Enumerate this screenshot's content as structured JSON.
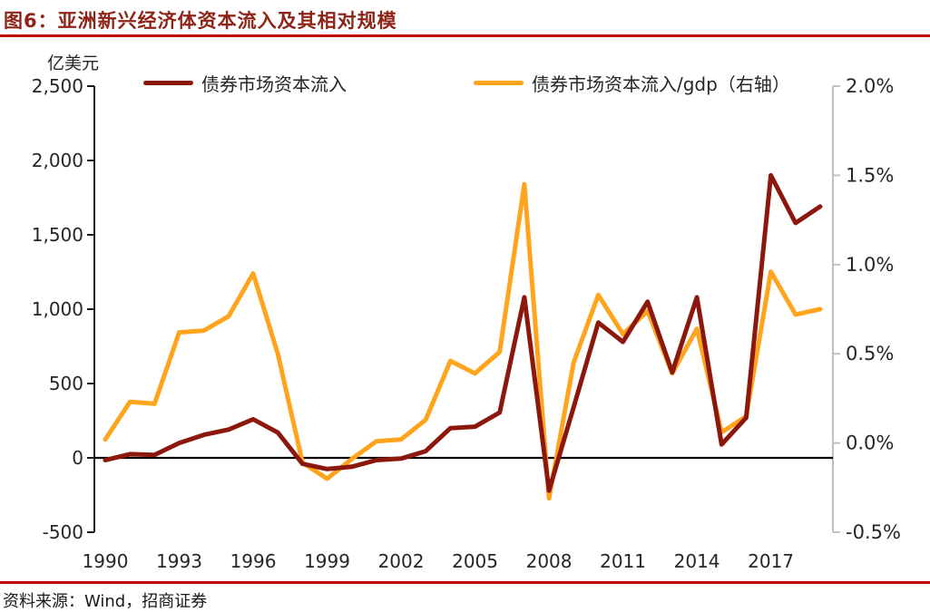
{
  "title": "图6：亚洲新兴经济体资本流入及其相对规模",
  "unit_label": "亿美元",
  "source": "资料来源：Wind，招商证券",
  "colors": {
    "title_red": "#8E2418",
    "rule_red": "#C00000",
    "bond_inflow_line": "#8C170C",
    "gdp_ratio_line": "#FFA41C",
    "right_axis_gray": "#BFBFBF",
    "zero_line_black": "#000000"
  },
  "legend": [
    {
      "label": "债券市场资本流入",
      "color": "#8C170C"
    },
    {
      "label": "债券市场资本流入/gdp（右轴）",
      "color": "#FFA41C"
    }
  ],
  "chart_data": {
    "type": "line",
    "title": "亚洲新兴经济体资本流入及其相对规模",
    "legend_position": "top",
    "grid": "off",
    "x": [
      1990,
      1991,
      1992,
      1993,
      1994,
      1995,
      1996,
      1997,
      1998,
      1999,
      2000,
      2001,
      2002,
      2003,
      2004,
      2005,
      2006,
      2007,
      2008,
      2009,
      2010,
      2011,
      2012,
      2013,
      2014,
      2015,
      2016,
      2017,
      2018,
      2019
    ],
    "x_tick_labels": [
      "1990",
      "1993",
      "1996",
      "1999",
      "2002",
      "2005",
      "2008",
      "2011",
      "2014",
      "2017"
    ],
    "series": [
      {
        "name": "债券市场资本流入",
        "axis": "left",
        "unit": "亿美元",
        "color": "#8C170C",
        "values": [
          -15,
          25,
          20,
          100,
          155,
          190,
          260,
          170,
          -40,
          -75,
          -60,
          -15,
          -5,
          45,
          200,
          210,
          305,
          1080,
          -220,
          340,
          910,
          780,
          1050,
          575,
          1080,
          90,
          270,
          1900,
          1580,
          1690
        ]
      },
      {
        "name": "债券市场资本流入/gdp（右轴）",
        "axis": "right",
        "unit": "%",
        "color": "#FFA41C",
        "values": [
          0.02,
          0.23,
          0.22,
          0.62,
          0.63,
          0.71,
          0.95,
          0.5,
          -0.11,
          -0.2,
          -0.09,
          0.01,
          0.02,
          0.13,
          0.46,
          0.39,
          0.51,
          1.45,
          -0.31,
          0.45,
          0.83,
          0.61,
          0.74,
          0.39,
          0.64,
          0.06,
          0.15,
          0.96,
          0.72,
          0.75
        ]
      }
    ],
    "left_axis": {
      "label": "亿美元",
      "min": -500,
      "max": 2500,
      "tick_labels": [
        "2,500",
        "2,000",
        "1,500",
        "1,000",
        "500",
        "0",
        "-500"
      ]
    },
    "right_axis": {
      "label": "%",
      "min": -0.5,
      "max": 2.0,
      "tick_labels": [
        "2.0%",
        "1.5%",
        "1.0%",
        "0.5%",
        "0.0%",
        "-0.5%"
      ]
    }
  }
}
